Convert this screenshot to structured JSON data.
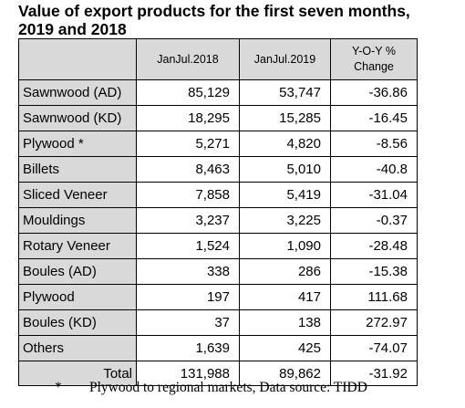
{
  "title_line1": "Value of export products for the first seven months,",
  "title_line2": "2019 and 2018",
  "chart_data": {
    "type": "table",
    "columns": [
      "JanJul.2018",
      "JanJul.2019",
      "Y-O-Y %",
      "Change"
    ],
    "rows": [
      {
        "label": "Sawnwood (AD)",
        "v2018": "85,129",
        "v2019": "53,747",
        "change": "-36.86"
      },
      {
        "label": "Sawnwood (KD)",
        "v2018": "18,295",
        "v2019": "15,285",
        "change": "-16.45"
      },
      {
        "label": "Plywood *",
        "v2018": "5,271",
        "v2019": "4,820",
        "change": "-8.56"
      },
      {
        "label": "Billets",
        "v2018": "8,463",
        "v2019": "5,010",
        "change": "-40.8"
      },
      {
        "label": "Sliced Veneer",
        "v2018": "7,858",
        "v2019": "5,419",
        "change": "-31.04"
      },
      {
        "label": "Mouldings",
        "v2018": "3,237",
        "v2019": "3,225",
        "change": "-0.37"
      },
      {
        "label": "Rotary Veneer",
        "v2018": "1,524",
        "v2019": "1,090",
        "change": "-28.48"
      },
      {
        "label": "Boules (AD)",
        "v2018": "338",
        "v2019": "286",
        "change": "-15.38"
      },
      {
        "label": "Plywood",
        "v2018": "197",
        "v2019": "417",
        "change": "111.68"
      },
      {
        "label": "Boules (KD)",
        "v2018": "37",
        "v2019": "138",
        "change": "272.97"
      },
      {
        "label": "Others",
        "v2018": "1,639",
        "v2019": "425",
        "change": "-74.07"
      }
    ],
    "total": {
      "label": "Total",
      "v2018": "131,988",
      "v2019": "89,862",
      "change": "-31.92"
    }
  },
  "footnote": {
    "mark": "*",
    "text": "Plywood to regional markets,  Data source: TIDD"
  }
}
